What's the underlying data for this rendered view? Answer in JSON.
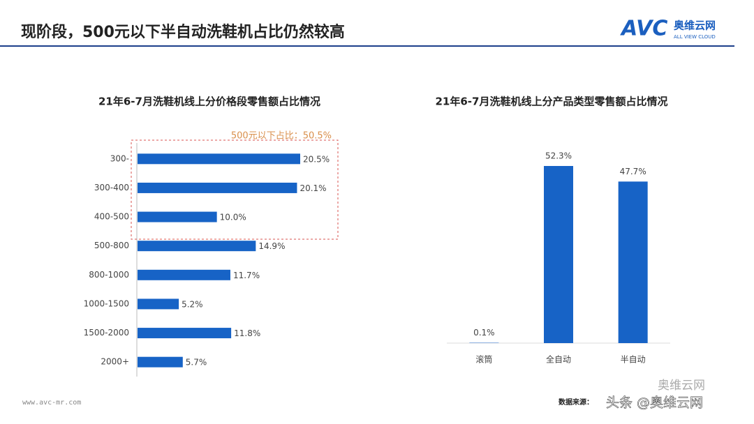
{
  "title": "现阶段，500元以下半自动洗鞋机占比仍然较高",
  "logo": {
    "brand": "AVC",
    "name": "奥维云网",
    "sub": "ALL VIEW CLOUD"
  },
  "footer": {
    "url": "www.avc-mr.com",
    "source": "数据来源：",
    "watermark": "头条 @奥维云网",
    "account": "奥维云网"
  },
  "chart_data": [
    {
      "type": "bar",
      "orientation": "horizontal",
      "title": "21年6-7月洗鞋机线上分价格段零售额占比情况",
      "categories": [
        "300-",
        "300-400",
        "400-500",
        "500-800",
        "800-1000",
        "1000-1500",
        "1500-2000",
        "2000+"
      ],
      "values": [
        20.5,
        20.1,
        10.0,
        14.9,
        11.7,
        5.2,
        11.8,
        5.7
      ],
      "value_labels": [
        "20.5%",
        "20.1%",
        "10.0%",
        "14.9%",
        "11.7%",
        "5.2%",
        "11.8%",
        "5.7%"
      ],
      "color": "#1763c6",
      "annotation": "500元以下占比：50.5%"
    },
    {
      "type": "bar",
      "orientation": "vertical",
      "title": "21年6-7月洗鞋机线上分产品类型零售额占比情况",
      "categories": [
        "滚筒",
        "全自动",
        "半自动"
      ],
      "values": [
        0.1,
        52.3,
        47.7
      ],
      "value_labels": [
        "0.1%",
        "52.3%",
        "47.7%"
      ],
      "color": "#1763c6"
    }
  ]
}
